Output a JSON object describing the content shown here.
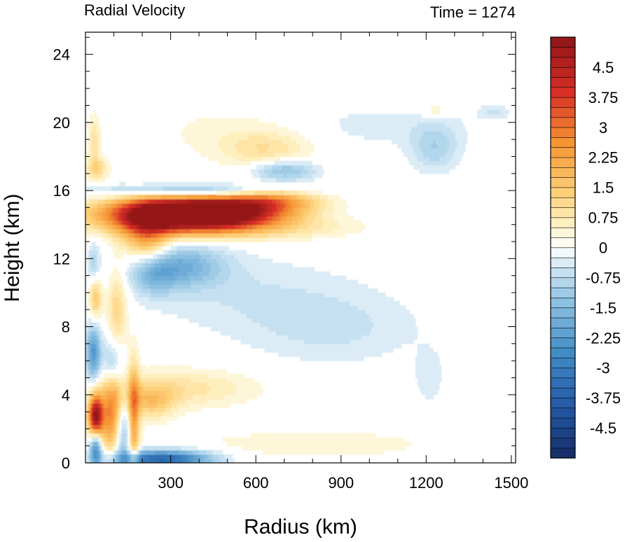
{
  "chart_data": {
    "type": "heatmap",
    "title": "Radial Velocity",
    "subtitle": "Time = 1274",
    "xlabel": "Radius (km)",
    "ylabel": "Height (km)",
    "xlim": [
      0,
      1515
    ],
    "ylim": [
      0,
      25.3
    ],
    "x_ticks": [
      300,
      600,
      900,
      1200,
      1500
    ],
    "x_tick_labels": [
      "300",
      "600",
      "900",
      "1200",
      "1500"
    ],
    "y_ticks": [
      0,
      4,
      8,
      12,
      16,
      20,
      24
    ],
    "y_tick_labels": [
      "0",
      "4",
      "8",
      "12",
      "16",
      "20",
      "24"
    ],
    "colorbar": {
      "min": -5.25,
      "max": 5.25,
      "step": 0.25,
      "tick_values": [
        4.5,
        3.75,
        3,
        2.25,
        1.5,
        0.75,
        0,
        -0.75,
        -1.5,
        -2.25,
        -3,
        -3.75,
        -4.5
      ],
      "tick_labels": [
        "4.5",
        "3.75",
        "3",
        "2.25",
        "1.5",
        "0.75",
        "0",
        "-0.75",
        "-1.5",
        "-2.25",
        "-3",
        "-3.75",
        "-4.5"
      ]
    },
    "features": [
      {
        "x": 330,
        "y": 14.6,
        "sx": 190,
        "sy": 0.7,
        "v": 5.5
      },
      {
        "x": 470,
        "y": 14.8,
        "sx": 170,
        "sy": 0.55,
        "v": 3.8
      },
      {
        "x": 650,
        "y": 15.5,
        "sx": 120,
        "sy": 0.45,
        "v": 2.0
      },
      {
        "x": 215,
        "y": 13.2,
        "sx": 60,
        "sy": 1.3,
        "v": 2.2
      },
      {
        "x": 560,
        "y": 13.8,
        "sx": 260,
        "sy": 0.5,
        "v": 1.0
      },
      {
        "x": 380,
        "y": 16.0,
        "sx": 240,
        "sy": 0.28,
        "v": -1.8
      },
      {
        "x": 700,
        "y": 17.2,
        "sx": 80,
        "sy": 0.45,
        "v": -1.5
      },
      {
        "x": 640,
        "y": 18.4,
        "sx": 110,
        "sy": 0.8,
        "v": 0.9
      },
      {
        "x": 310,
        "y": 11.6,
        "sx": 120,
        "sy": 0.9,
        "v": -1.8
      },
      {
        "x": 240,
        "y": 11.0,
        "sx": 50,
        "sy": 0.8,
        "v": -1.0
      },
      {
        "x": 560,
        "y": 10.0,
        "sx": 280,
        "sy": 1.6,
        "v": -0.45
      },
      {
        "x": 870,
        "y": 7.9,
        "sx": 220,
        "sy": 1.5,
        "v": -0.55
      },
      {
        "x": 1230,
        "y": 18.5,
        "sx": 60,
        "sy": 1.0,
        "v": -0.9
      },
      {
        "x": 1020,
        "y": 19.8,
        "sx": 260,
        "sy": 1.0,
        "v": -0.35
      },
      {
        "x": 1440,
        "y": 20.6,
        "sx": 40,
        "sy": 0.3,
        "v": -0.5
      },
      {
        "x": 1230,
        "y": 20.7,
        "sx": 30,
        "sy": 0.3,
        "v": 0.6
      },
      {
        "x": 500,
        "y": 19.5,
        "sx": 200,
        "sy": 1.2,
        "v": 0.35
      },
      {
        "x": 1210,
        "y": 5.0,
        "sx": 40,
        "sy": 1.2,
        "v": -0.4
      },
      {
        "x": 36,
        "y": 2.7,
        "sx": 18,
        "sy": 0.9,
        "v": 5.2
      },
      {
        "x": 36,
        "y": 1.0,
        "sx": 15,
        "sy": 0.8,
        "v": -3.0
      },
      {
        "x": 28,
        "y": 6.5,
        "sx": 18,
        "sy": 1.2,
        "v": -2.3
      },
      {
        "x": 35,
        "y": 9.8,
        "sx": 16,
        "sy": 1.0,
        "v": 1.7
      },
      {
        "x": 30,
        "y": 11.5,
        "sx": 14,
        "sy": 1.0,
        "v": -1.0
      },
      {
        "x": 40,
        "y": 17.3,
        "sx": 28,
        "sy": 0.5,
        "v": 1.2
      },
      {
        "x": 30,
        "y": 19.0,
        "sx": 15,
        "sy": 1.0,
        "v": 0.9
      },
      {
        "x": 95,
        "y": 3.0,
        "sx": 28,
        "sy": 1.6,
        "v": 3.0
      },
      {
        "x": 95,
        "y": 5.8,
        "sx": 25,
        "sy": 1.2,
        "v": -1.5
      },
      {
        "x": 110,
        "y": 9.0,
        "sx": 25,
        "sy": 2.0,
        "v": 1.3
      },
      {
        "x": 170,
        "y": 2.6,
        "sx": 14,
        "sy": 2.3,
        "v": 2.4
      },
      {
        "x": 130,
        "y": 2.0,
        "sx": 22,
        "sy": 1.5,
        "v": -1.8
      },
      {
        "x": 270,
        "y": 0.25,
        "sx": 120,
        "sy": 0.35,
        "v": -3.8
      },
      {
        "x": 330,
        "y": 4.4,
        "sx": 190,
        "sy": 0.8,
        "v": 0.9
      },
      {
        "x": 230,
        "y": 3.6,
        "sx": 60,
        "sy": 0.7,
        "v": 1.3
      },
      {
        "x": 800,
        "y": 1.1,
        "sx": 360,
        "sy": 0.7,
        "v": 0.4
      }
    ]
  }
}
